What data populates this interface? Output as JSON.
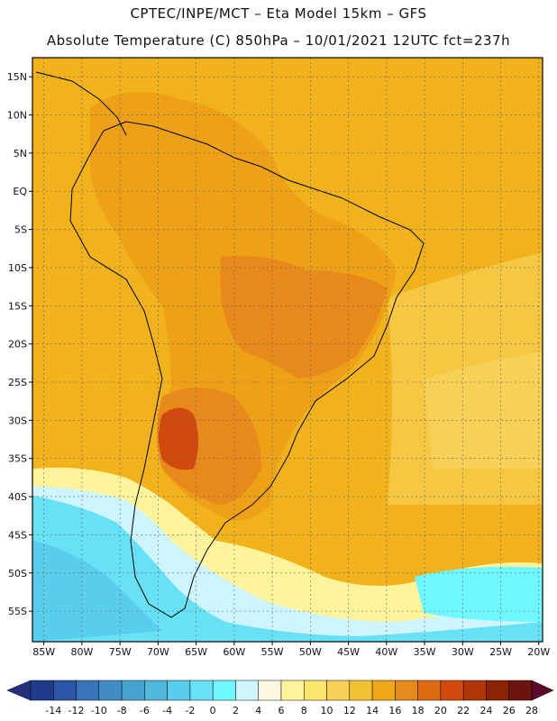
{
  "header": {
    "line1": "CPTEC/INPE/MCT –  Eta Model 15km – GFS",
    "line2": "Absolute Temperature (C) 850hPa – 10/01/2021 12UTC fct=237h"
  },
  "map": {
    "lat_labels": [
      "15N",
      "10N",
      "5N",
      "EQ",
      "5S",
      "10S",
      "15S",
      "20S",
      "25S",
      "30S",
      "35S",
      "40S",
      "45S",
      "50S",
      "55S"
    ],
    "lon_labels": [
      "85W",
      "80W",
      "75W",
      "70W",
      "65W",
      "60W",
      "55W",
      "50W",
      "45W",
      "40W",
      "35W",
      "30W",
      "25W",
      "20W"
    ],
    "lat_values": [
      15,
      10,
      5,
      0,
      -5,
      -10,
      -15,
      -20,
      -25,
      -30,
      -35,
      -40,
      -45,
      -50,
      -55
    ],
    "lon_values": [
      -85,
      -80,
      -75,
      -70,
      -65,
      -60,
      -55,
      -50,
      -45,
      -40,
      -35,
      -30,
      -25,
      -20
    ],
    "background_color": "#f1b21c"
  },
  "colorbar": {
    "labels": [
      "-14",
      "-12",
      "-10",
      "-8",
      "-6",
      "-4",
      "-2",
      "0",
      "2",
      "4",
      "6",
      "8",
      "10",
      "12",
      "14",
      "16",
      "18",
      "20",
      "22",
      "24",
      "26",
      "28"
    ],
    "colors": [
      "#213b8c",
      "#2b56a6",
      "#3775b8",
      "#3f8dc2",
      "#48a4cf",
      "#4fb8dd",
      "#59cdec",
      "#66e1f6",
      "#6ff8ff",
      "#cdf4ff",
      "#fff8e0",
      "#fff49b",
      "#fbe56c",
      "#f7d155",
      "#f3c234",
      "#efa914",
      "#e88a1b",
      "#e06a12",
      "#cf4a0c",
      "#b03507",
      "#8d2306",
      "#6e1410"
    ],
    "left_arrow_color": "#23307e",
    "right_arrow_color": "#5b0a2c"
  }
}
